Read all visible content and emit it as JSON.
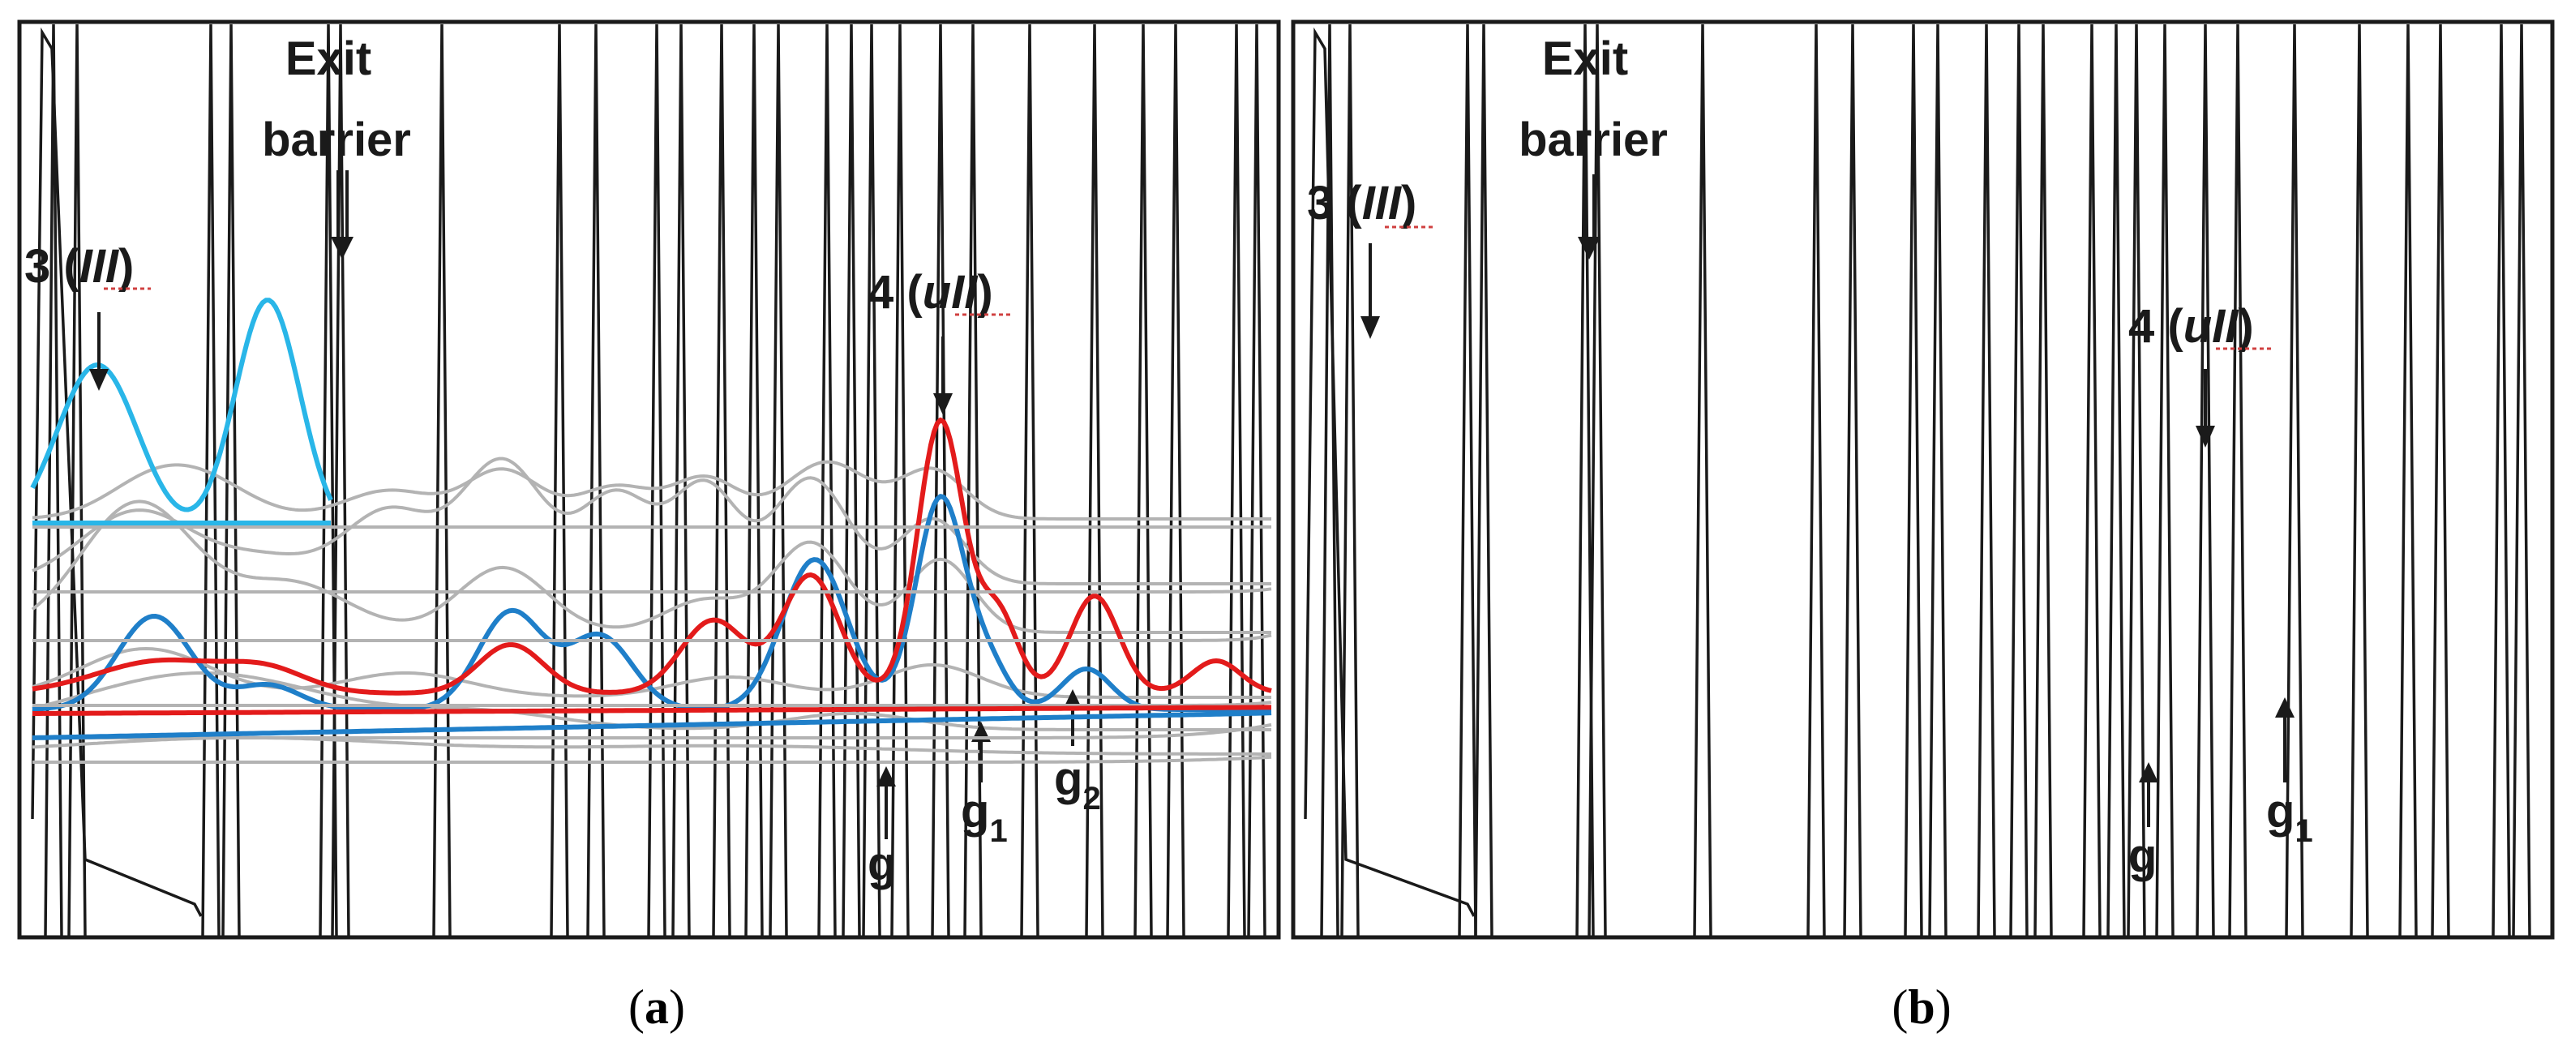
{
  "chart_data": [
    {
      "id": "a",
      "type": "line",
      "caption_letter": "a",
      "annotations": {
        "exit_line1": "Exit",
        "exit_line2": "barrier",
        "peak3_num": "3 (",
        "peak3_roman": "III",
        "peak3_close": ")",
        "peak4_num": "4 (",
        "peak4_roman": "uII",
        "peak4_close": ")",
        "g": "g",
        "g1_base": "g",
        "g1_sub": "1",
        "g2_base": "g",
        "g2_sub": "2"
      },
      "colors": {
        "cyan": "#29b6e8",
        "red": "#e31b1b",
        "blue": "#1f7fc9",
        "gray": "#b3b3b3",
        "black": "#1a1a1a"
      }
    },
    {
      "id": "b",
      "type": "line",
      "caption_letter": "b",
      "annotations": {
        "exit_line1": "Exit",
        "exit_line2": "barrier",
        "peak3_num": "3 (",
        "peak3_roman": "III",
        "peak3_close": ")",
        "peak4_num": "4 (",
        "peak4_roman": "uII",
        "peak4_close": ")",
        "g": "g",
        "g1_base": "g",
        "g1_sub": "1"
      },
      "colors": {
        "cyan": "#29b6e8",
        "red": "#e31b1b",
        "blue": "#1f7fc9",
        "gray": "#b3b3b3",
        "black": "#1a1a1a"
      }
    }
  ]
}
